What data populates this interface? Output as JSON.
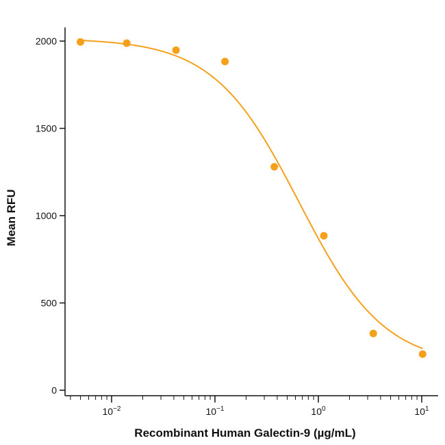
{
  "chart_data": {
    "type": "scatter",
    "title": "",
    "xlabel": "Recombinant Human Galectin-9 (µg/mL)",
    "ylabel": "Mean RFU",
    "x_scale": "log",
    "xlim": [
      0.003,
      15
    ],
    "ylim": [
      0,
      2100
    ],
    "y_ticks": [
      0,
      500,
      1000,
      1500,
      2000
    ],
    "x_major_ticks": [
      {
        "value": 0.01,
        "base": "10",
        "exp": "-2"
      },
      {
        "value": 0.1,
        "base": "10",
        "exp": "-1"
      },
      {
        "value": 1,
        "base": "10",
        "exp": "0"
      },
      {
        "value": 10,
        "base": "10",
        "exp": "1"
      }
    ],
    "grid": false,
    "color": "#f5a01a",
    "series": [
      {
        "points": [
          {
            "x": 0.005,
            "y": 1995
          },
          {
            "x": 0.014,
            "y": 1988
          },
          {
            "x": 0.042,
            "y": 1948
          },
          {
            "x": 0.125,
            "y": 1883
          },
          {
            "x": 0.375,
            "y": 1280
          },
          {
            "x": 1.13,
            "y": 885
          },
          {
            "x": 3.4,
            "y": 325
          },
          {
            "x": 10.2,
            "y": 207
          }
        ],
        "fit_curve": {
          "model": "4PL",
          "top": 2015,
          "bottom": 140,
          "ic50": 0.65,
          "hill": 1.05
        }
      }
    ]
  }
}
